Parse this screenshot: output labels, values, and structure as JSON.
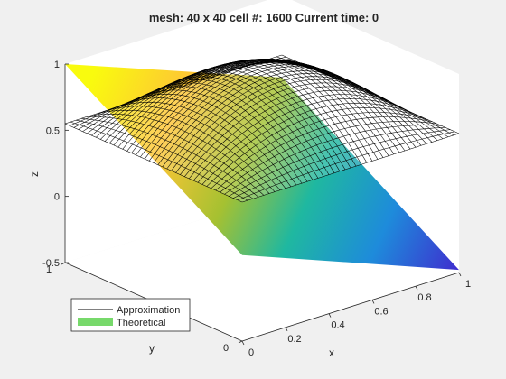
{
  "figure": {
    "background": "#f0f0f0",
    "axes_background": "#ffffff"
  },
  "chart_data": {
    "type": "surface",
    "title": "mesh: 40 x 40 cell #: 1600 Current time: 0",
    "xlabel": "x",
    "ylabel": "y",
    "zlabel": "z",
    "xlim": [
      0,
      1
    ],
    "ylim": [
      0,
      1
    ],
    "zlim": [
      -0.5,
      1
    ],
    "xticks": [
      "0",
      "0.2",
      "0.4",
      "0.6",
      "0.8",
      "1"
    ],
    "yticks": [
      "0",
      "1"
    ],
    "zticks": [
      "-0.5",
      "0",
      "0.5",
      "1"
    ],
    "view": "3D perspective",
    "legend": {
      "placement": "bottom-left",
      "entries": [
        {
          "label": "Approximation",
          "style": "line",
          "color": "#000000"
        },
        {
          "label": "Theoretical",
          "style": "patch",
          "color": "#77d96b"
        }
      ]
    },
    "series": [
      {
        "name": "Approximation",
        "kind": "wireframe mesh",
        "grid": [
          40,
          40
        ],
        "edge_color": "#000000",
        "corner_z": {
          "x0_y0": 0.55,
          "x1_y0": 0.55,
          "x0_y1": 0.55,
          "x1_y1": 0.55
        },
        "center_z": 0.98
      },
      {
        "name": "Theoretical",
        "kind": "shaded surface",
        "colormap": "parula",
        "corner_z": {
          "x0_y0": 0.15,
          "x1_y0": -0.48,
          "x0_y1": 1.0,
          "x1_y1": 0.38
        }
      }
    ]
  }
}
